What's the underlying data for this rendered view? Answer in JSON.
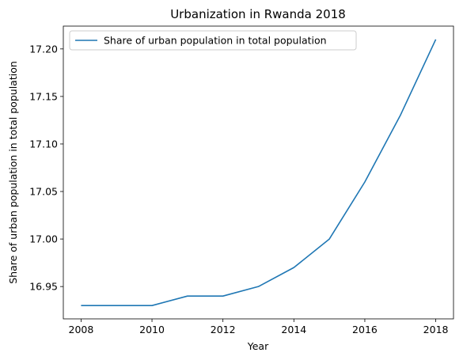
{
  "chart_data": {
    "type": "line",
    "title": "Urbanization in Rwanda 2018",
    "xlabel": "Year",
    "ylabel": "Share of urban population in total population",
    "x": [
      2008,
      2009,
      2010,
      2011,
      2012,
      2013,
      2014,
      2015,
      2016,
      2017,
      2018
    ],
    "series": [
      {
        "name": "Share of urban population in total population",
        "values": [
          16.93,
          16.93,
          16.93,
          16.94,
          16.94,
          16.95,
          16.97,
          17.0,
          17.06,
          17.13,
          17.21
        ],
        "color": "#1f77b4"
      }
    ],
    "xlim": [
      2007.5,
      2018.5
    ],
    "ylim": [
      16.916,
      17.224
    ],
    "xticks": [
      2008,
      2010,
      2012,
      2014,
      2016,
      2018
    ],
    "xtick_labels": [
      "2008",
      "2010",
      "2012",
      "2014",
      "2016",
      "2018"
    ],
    "yticks": [
      16.95,
      17.0,
      17.05,
      17.1,
      17.15,
      17.2
    ],
    "ytick_labels": [
      "16.95",
      "17.00",
      "17.05",
      "17.10",
      "17.15",
      "17.20"
    ],
    "grid": false,
    "legend_position": "upper-left"
  }
}
